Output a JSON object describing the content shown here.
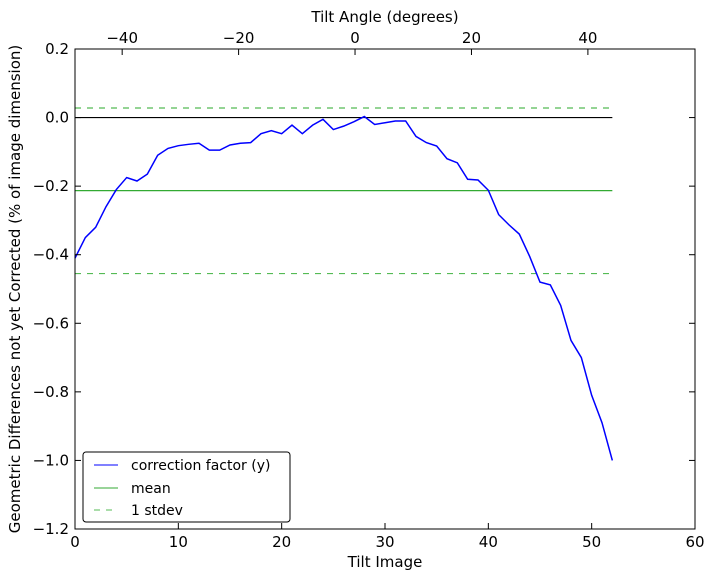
{
  "chart_data": {
    "type": "line",
    "title": "",
    "xlabel": "Tilt Image",
    "ylabel": "Geometric Differences not yet Corrected (% of image dimension)",
    "top_xlabel": "Tilt Angle (degrees)",
    "xlim": [
      0,
      60
    ],
    "ylim": [
      -1.2,
      0.2
    ],
    "xticks": [
      0,
      10,
      20,
      30,
      40,
      50,
      60
    ],
    "yticks": [
      0.2,
      0.0,
      -0.2,
      -0.4,
      -0.6,
      -0.8,
      -1.0,
      -1.2
    ],
    "ytick_labels": [
      "0.2",
      "0.0",
      "−0.2",
      "−0.4",
      "−0.6",
      "−0.8",
      "−1.0",
      "−1.2"
    ],
    "top_xticks": [
      -40,
      -20,
      0,
      20,
      40
    ],
    "top_xtick_labels": [
      "−40",
      "−20",
      "0",
      "20",
      "40"
    ],
    "top_axis_map": {
      "zero_at_image": 27.1,
      "degrees_per_image": 1.775
    },
    "series": [
      {
        "name": "correction factor (y)",
        "color": "#0000ff",
        "style": "solid",
        "x": [
          0,
          1,
          2,
          3,
          4,
          5,
          6,
          7,
          8,
          9,
          10,
          11,
          12,
          13,
          14,
          15,
          16,
          17,
          18,
          19,
          20,
          21,
          22,
          23,
          24,
          25,
          26,
          27,
          28,
          29,
          30,
          31,
          32,
          33,
          34,
          35,
          36,
          37,
          38,
          39,
          40,
          41,
          42,
          43,
          44,
          45,
          46,
          47,
          48,
          49,
          50,
          51,
          52
        ],
        "y": [
          -0.41,
          -0.35,
          -0.32,
          -0.26,
          -0.21,
          -0.175,
          -0.185,
          -0.165,
          -0.11,
          -0.09,
          -0.082,
          -0.078,
          -0.075,
          -0.095,
          -0.095,
          -0.08,
          -0.075,
          -0.073,
          -0.047,
          -0.038,
          -0.047,
          -0.022,
          -0.047,
          -0.022,
          -0.005,
          -0.035,
          -0.025,
          -0.012,
          0.003,
          -0.02,
          -0.015,
          -0.01,
          -0.01,
          -0.055,
          -0.073,
          -0.083,
          -0.12,
          -0.132,
          -0.18,
          -0.182,
          -0.212,
          -0.283,
          -0.313,
          -0.34,
          -0.405,
          -0.48,
          -0.488,
          -0.548,
          -0.65,
          -0.7,
          -0.81,
          -0.89,
          -1.0
        ]
      },
      {
        "name": "mean",
        "color": "#33aa33",
        "style": "solid",
        "x": [
          0,
          52
        ],
        "y": [
          -0.213,
          -0.213
        ]
      },
      {
        "name": "1 stdev",
        "color": "#55bb55",
        "style": "dashed",
        "x": [
          0,
          52
        ],
        "y": [
          0.028,
          0.028
        ]
      },
      {
        "name": "1 stdev (lower)",
        "color": "#55bb55",
        "style": "dashed",
        "x": [
          0,
          52
        ],
        "y": [
          -0.455,
          -0.455
        ],
        "in_legend": false
      },
      {
        "name": "zero",
        "color": "#000000",
        "style": "solid",
        "x": [
          0,
          52
        ],
        "y": [
          0,
          0
        ],
        "in_legend": false
      }
    ],
    "legend": {
      "placement": "lower-left",
      "entries": [
        "correction factor (y)",
        "mean",
        "1 stdev"
      ]
    }
  }
}
